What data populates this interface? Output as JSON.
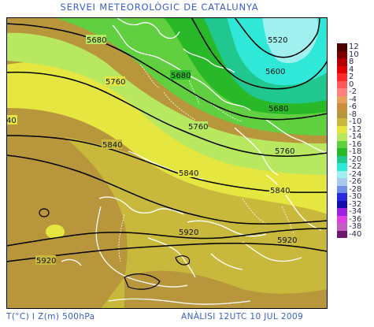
{
  "header": {
    "title": "SERVEI METEOROLÒGIC DE CATALUNYA"
  },
  "footer": {
    "variables": "T(°C) I Z(m) 500hPa",
    "analysis": "ANÀLISI 12UTC 10 JUL 2009"
  },
  "legend": {
    "items": [
      {
        "label": "12",
        "color": "#4a0000"
      },
      {
        "label": "10",
        "color": "#7a0000"
      },
      {
        "label": "8",
        "color": "#b00000"
      },
      {
        "label": "4",
        "color": "#e00000"
      },
      {
        "label": "2",
        "color": "#ff2a2a"
      },
      {
        "label": "0",
        "color": "#ff5a5a"
      },
      {
        "label": "-2",
        "color": "#ff8080"
      },
      {
        "label": "-4",
        "color": "#e8a060"
      },
      {
        "label": "-6",
        "color": "#c8903c"
      },
      {
        "label": "-8",
        "color": "#b8963c"
      },
      {
        "label": "-10",
        "color": "#c8b83c"
      },
      {
        "label": "-12",
        "color": "#e6e640"
      },
      {
        "label": "-14",
        "color": "#b8e860"
      },
      {
        "label": "-16",
        "color": "#60d040"
      },
      {
        "label": "-18",
        "color": "#28b828"
      },
      {
        "label": "-20",
        "color": "#20c890"
      },
      {
        "label": "-22",
        "color": "#30e8d8"
      },
      {
        "label": "-24",
        "color": "#a0f0f0"
      },
      {
        "label": "-26",
        "color": "#a8c8f0"
      },
      {
        "label": "-28",
        "color": "#7090e8"
      },
      {
        "label": "-30",
        "color": "#2828e0"
      },
      {
        "label": "-32",
        "color": "#1010a8"
      },
      {
        "label": "-34",
        "color": "#a020e0"
      },
      {
        "label": "-36",
        "color": "#e040e0"
      },
      {
        "label": "-38",
        "color": "#c060c0"
      },
      {
        "label": "-40",
        "color": "#6a1a6a"
      }
    ]
  },
  "isolines": {
    "labels": [
      "5520",
      "5600",
      "5680",
      "5680",
      "5680",
      "5760",
      "5760",
      "5760",
      "5840",
      "5840",
      "5840",
      "5920",
      "5920",
      "5920",
      "40"
    ]
  }
}
